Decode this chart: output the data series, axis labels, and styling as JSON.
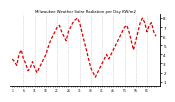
{
  "title": "Milwaukee Weather Solar Radiation per Day KW/m2",
  "background_color": "#ffffff",
  "line_color": "#dd0000",
  "grid_color": "#bbbbbb",
  "ylim": [
    0.5,
    8.5
  ],
  "ytick_values": [
    1,
    2,
    3,
    4,
    5,
    6,
    7,
    8
  ],
  "ytick_labels": [
    "8",
    "7",
    "6",
    "5",
    "4",
    "3",
    "2",
    "1"
  ],
  "solar_data": [
    5.5,
    5.8,
    6.2,
    5.0,
    4.5,
    5.5,
    6.0,
    6.8,
    6.5,
    5.8,
    6.5,
    7.0,
    6.5,
    6.0,
    5.5,
    5.0,
    4.2,
    3.5,
    3.0,
    2.5,
    2.0,
    1.8,
    2.5,
    3.0,
    3.5,
    2.5,
    2.0,
    1.5,
    1.2,
    1.0,
    1.5,
    2.5,
    3.5,
    4.5,
    5.5,
    6.5,
    7.0,
    7.5,
    7.0,
    6.5,
    6.0,
    5.5,
    5.0,
    5.5,
    5.0,
    4.5,
    4.0,
    3.5,
    3.0,
    2.5,
    2.0,
    1.8,
    2.5,
    3.5,
    4.5,
    3.5,
    2.5,
    1.5,
    1.0,
    1.5,
    2.5,
    1.8,
    1.5,
    2.5,
    3.0
  ],
  "vgrid_positions": [
    5,
    10,
    15,
    20,
    25,
    30,
    35,
    40,
    45,
    50,
    55,
    60
  ],
  "xlim": [
    -1,
    66
  ]
}
